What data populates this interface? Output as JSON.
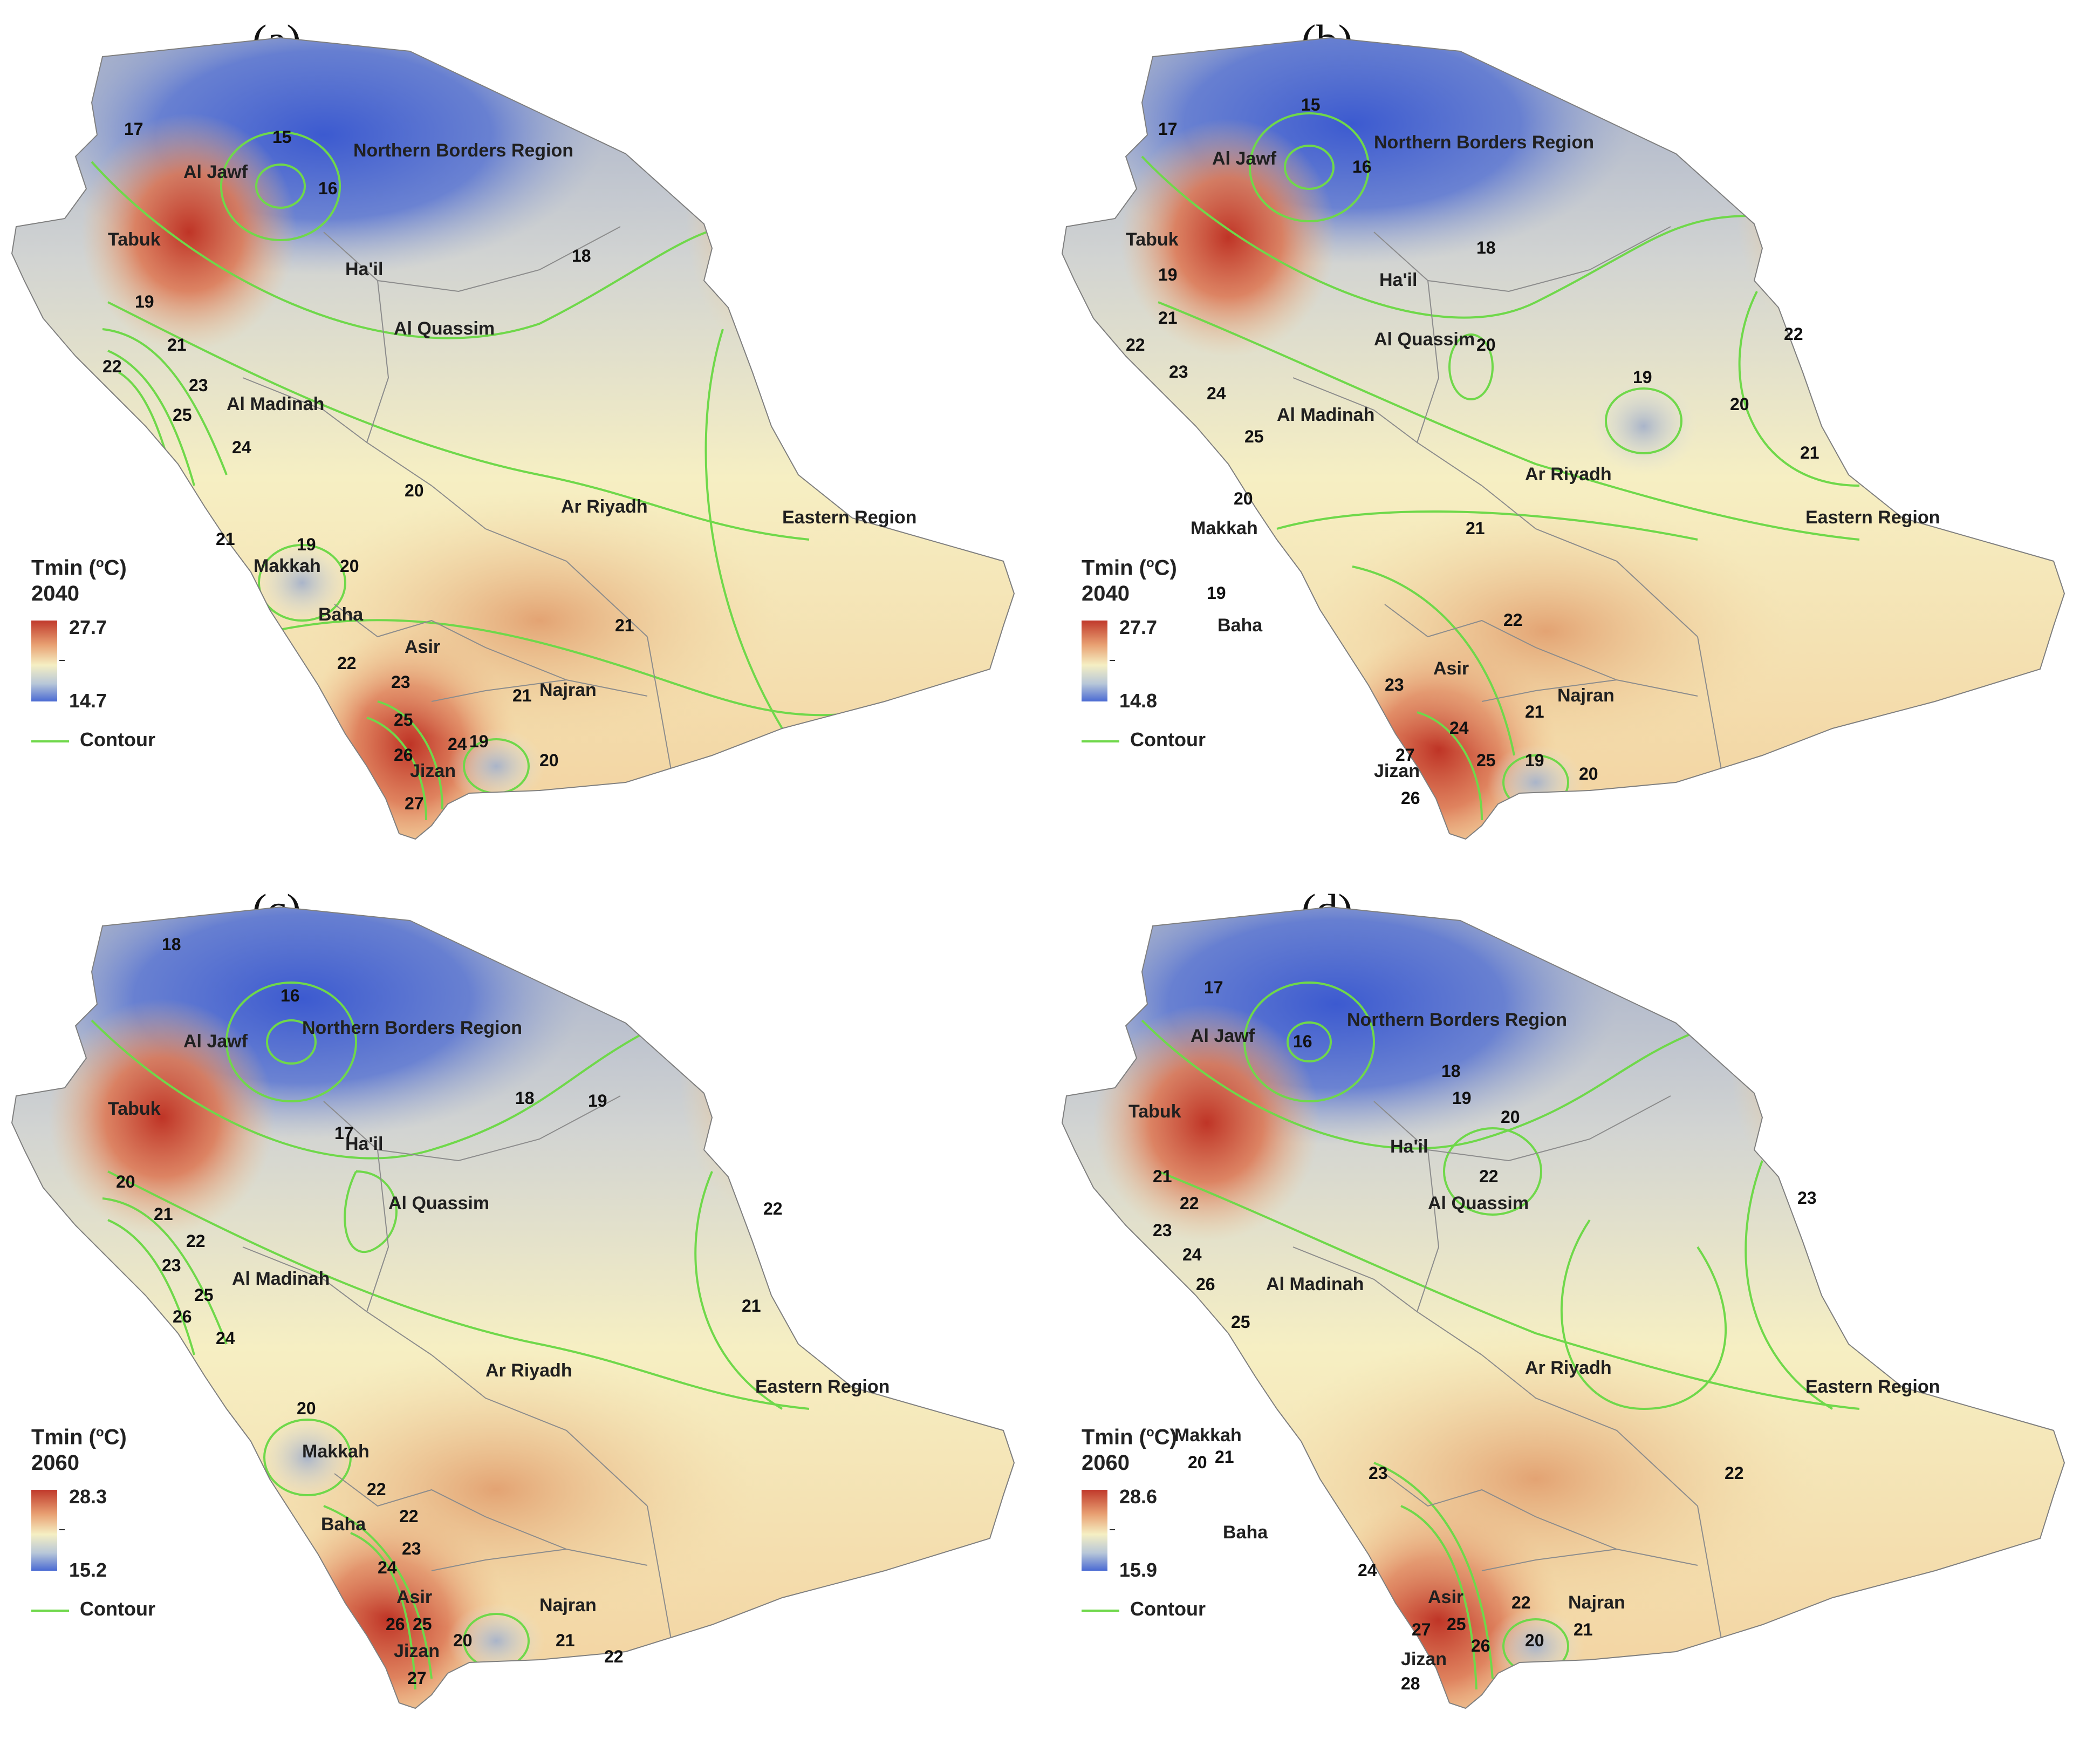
{
  "colors": {
    "cold": "#4a68d4",
    "cool": "#b9c5d8",
    "neutral": "#f6f0c4",
    "warm": "#eab483",
    "hot": "#c0392b",
    "contour": "#6fd84a",
    "boundary": "#8c8c8c"
  },
  "regions": {
    "northern_borders": "Northern Borders Region",
    "al_jawf": "Al Jawf",
    "tabuk": "Tabuk",
    "hail": "Ha'il",
    "al_quassim": "Al Quassim",
    "al_madinah": "Al Madinah",
    "ar_riyadh": "Ar Riyadh",
    "eastern": "Eastern Region",
    "makkah": "Makkah",
    "baha": "Baha",
    "asir": "Asir",
    "najran": "Najran",
    "jizan": "Jizan"
  },
  "panels": [
    {
      "letter": "(a)",
      "legend": {
        "title": "Tmin (",
        "unit": "o",
        "title_end": "C)",
        "year": "2040",
        "max": "27.7",
        "min": "14.7",
        "contour": "Contour"
      },
      "contour_labels": [
        "15",
        "16",
        "17",
        "18",
        "19",
        "21",
        "22",
        "23",
        "25",
        "24",
        "20",
        "21",
        "19",
        "20",
        "21",
        "22",
        "23",
        "21",
        "25",
        "24",
        "26",
        "19",
        "20",
        "27"
      ]
    },
    {
      "letter": "(b)",
      "legend": {
        "title": "Tmin (",
        "unit": "o",
        "title_end": "C)",
        "year": "2040",
        "max": "27.7",
        "min": "14.8",
        "contour": "Contour"
      },
      "contour_labels": [
        "15",
        "16",
        "17",
        "18",
        "19",
        "21",
        "22",
        "23",
        "24",
        "25",
        "20",
        "20",
        "19",
        "22",
        "21",
        "20",
        "21",
        "19",
        "22",
        "23",
        "21",
        "24",
        "27",
        "25",
        "26",
        "19",
        "20"
      ]
    },
    {
      "letter": "(c)",
      "legend": {
        "title": "Tmin (",
        "unit": "o",
        "title_end": "C)",
        "year": "2060",
        "max": "28.3",
        "min": "15.2",
        "contour": "Contour"
      },
      "contour_labels": [
        "16",
        "18",
        "18",
        "19",
        "17",
        "20",
        "21",
        "22",
        "23",
        "25",
        "26",
        "24",
        "22",
        "21",
        "20",
        "22",
        "22",
        "23",
        "24",
        "25",
        "26",
        "20",
        "21",
        "22",
        "27"
      ]
    },
    {
      "letter": "(d)",
      "legend": {
        "title": "Tmin (",
        "unit": "o",
        "title_end": "C)",
        "year": "2060",
        "max": "28.6",
        "min": "15.9",
        "contour": "Contour"
      },
      "contour_labels": [
        "17",
        "16",
        "18",
        "19",
        "20",
        "21",
        "22",
        "23",
        "24",
        "26",
        "25",
        "22",
        "23",
        "22",
        "20",
        "21",
        "23",
        "24",
        "22",
        "21",
        "20",
        "27",
        "26",
        "25",
        "28"
      ]
    }
  ]
}
